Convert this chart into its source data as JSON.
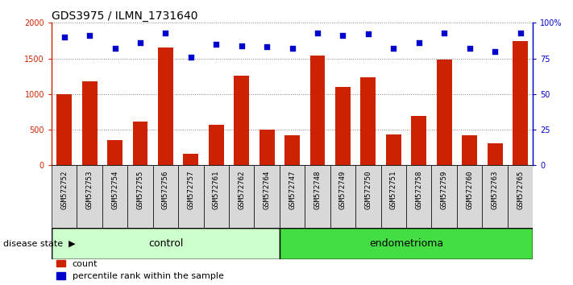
{
  "title": "GDS3975 / ILMN_1731640",
  "samples": [
    "GSM572752",
    "GSM572753",
    "GSM572754",
    "GSM572755",
    "GSM572756",
    "GSM572757",
    "GSM572761",
    "GSM572762",
    "GSM572764",
    "GSM572747",
    "GSM572748",
    "GSM572749",
    "GSM572750",
    "GSM572751",
    "GSM572758",
    "GSM572759",
    "GSM572760",
    "GSM572763",
    "GSM572765"
  ],
  "counts": [
    1000,
    1175,
    350,
    610,
    1650,
    165,
    570,
    1260,
    500,
    425,
    1540,
    1100,
    1240,
    435,
    690,
    1480,
    425,
    305,
    1740
  ],
  "percentiles": [
    90,
    91,
    82,
    86,
    93,
    76,
    85,
    84,
    83,
    82,
    93,
    91,
    92,
    82,
    86,
    93,
    82,
    80,
    93
  ],
  "control_count": 9,
  "endometrioma_count": 10,
  "bar_color": "#cc2200",
  "dot_color": "#0000cc",
  "left_axis_color": "#cc2200",
  "right_axis_color": "#0000cc",
  "ylim_left": [
    0,
    2000
  ],
  "ylim_right": [
    0,
    100
  ],
  "yticks_left": [
    0,
    500,
    1000,
    1500,
    2000
  ],
  "yticks_right": [
    0,
    25,
    50,
    75,
    100
  ],
  "ytick_labels_right": [
    "0",
    "25",
    "50",
    "75",
    "100%"
  ],
  "control_color": "#ccffcc",
  "endometrioma_color": "#44dd44",
  "label_bg_color": "#d8d8d8",
  "legend_count_label": "count",
  "legend_pct_label": "percentile rank within the sample",
  "disease_state_label": "disease state",
  "control_label": "control",
  "endometrioma_label": "endometrioma",
  "title_fontsize": 10,
  "tick_fontsize": 6.5,
  "legend_fontsize": 8,
  "annotation_fontsize": 9,
  "disease_label_fontsize": 8
}
